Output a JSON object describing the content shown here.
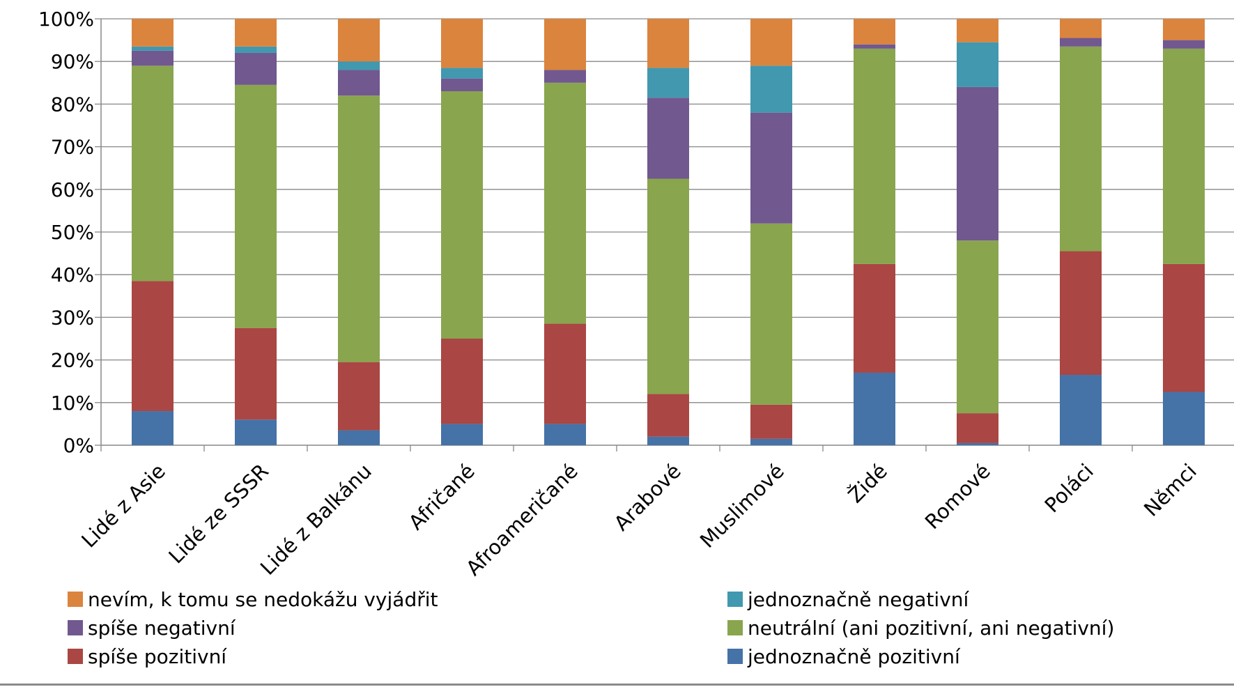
{
  "chart_data": {
    "type": "bar",
    "stacked": true,
    "percent": true,
    "categories": [
      "Lidé z Asie",
      "Lidé ze SSSR",
      "Lidé z Balkánu",
      "Afričané",
      "Afroameričané",
      "Arabové",
      "Muslimové",
      "Židé",
      "Romové",
      "Poláci",
      "Němci"
    ],
    "ylim": [
      0,
      100
    ],
    "yticks": [
      "0%",
      "10%",
      "20%",
      "30%",
      "40%",
      "50%",
      "60%",
      "70%",
      "80%",
      "90%",
      "100%"
    ],
    "grid": true,
    "legend_position": "bottom",
    "series": [
      {
        "name": "jednoznačně pozitivní",
        "color": "#4572A7",
        "values": [
          8,
          6,
          3.5,
          5,
          5,
          2,
          1.5,
          17,
          0.5,
          16.5,
          12.5
        ]
      },
      {
        "name": "spíše pozitivní",
        "color": "#AA4643",
        "values": [
          30.5,
          21.5,
          16,
          20,
          23.5,
          10,
          8,
          25.5,
          7,
          29,
          30
        ]
      },
      {
        "name": "neutrální (ani pozitivní, ani negativní)",
        "color": "#89A54E",
        "values": [
          50.5,
          57,
          62.5,
          58,
          56.5,
          50.5,
          42.5,
          50.5,
          40.5,
          48,
          50.5
        ]
      },
      {
        "name": "spíše negativní",
        "color": "#71588F",
        "values": [
          3.5,
          7.5,
          6,
          3,
          3,
          19,
          26,
          1,
          36,
          2,
          2
        ]
      },
      {
        "name": "jednoznačně negativní",
        "color": "#4198AF",
        "values": [
          1,
          1.5,
          2,
          2.5,
          0,
          7,
          11,
          0,
          10.5,
          0,
          0
        ]
      },
      {
        "name": "nevím, k tomu se nedokážu vyjádřit",
        "color": "#DB843D",
        "values": [
          6.5,
          6.5,
          10,
          11.5,
          12,
          11.5,
          11,
          6,
          5.5,
          4.5,
          5
        ]
      }
    ]
  },
  "legend": {
    "items": [
      {
        "label": "nevím, k tomu se nedokážu vyjádřit",
        "color": "#DB843D"
      },
      {
        "label": "jednoznačně negativní",
        "color": "#4198AF"
      },
      {
        "label": "spíše negativní",
        "color": "#71588F"
      },
      {
        "label": "neutrální (ani pozitivní, ani negativní)",
        "color": "#89A54E"
      },
      {
        "label": "spíše pozitivní",
        "color": "#AA4643"
      },
      {
        "label": "jednoznačně pozitivní",
        "color": "#4572A7"
      }
    ]
  }
}
